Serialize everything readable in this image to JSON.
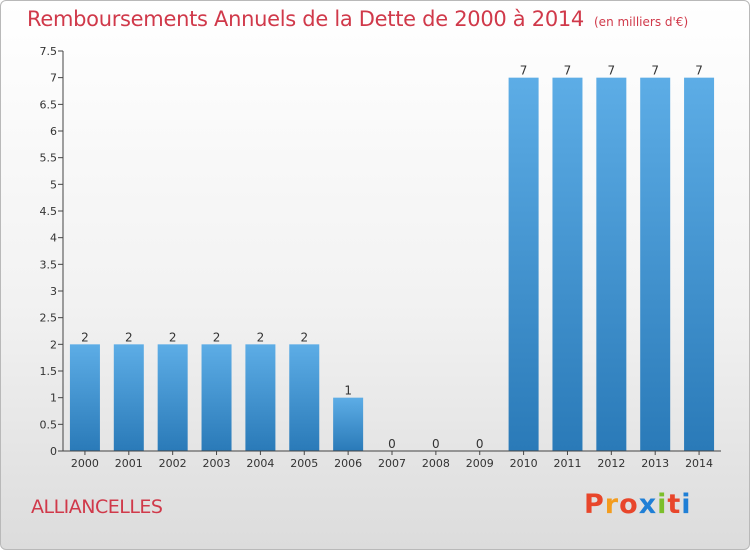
{
  "title": {
    "main": "Remboursements Annuels de la Dette de 2000 à 2014",
    "unit": "(en milliers d'€)"
  },
  "commune": "ALLIANCELLES",
  "logo": {
    "text": "Proxiti",
    "colors": [
      "#e8462b",
      "#f39c1e",
      "#e8462b",
      "#1f7fd6",
      "#7cbf2b",
      "#e8462b",
      "#1f7fd6"
    ]
  },
  "colors": {
    "bar_light": "#5dade6",
    "bar_dark": "#2a7ab8",
    "title": "#d0394a"
  },
  "chart_data": {
    "type": "bar",
    "categories": [
      "2000",
      "2001",
      "2002",
      "2003",
      "2004",
      "2005",
      "2006",
      "2007",
      "2008",
      "2009",
      "2010",
      "2011",
      "2012",
      "2013",
      "2014"
    ],
    "values": [
      2,
      2,
      2,
      2,
      2,
      2,
      1,
      0,
      0,
      0,
      7,
      7,
      7,
      7,
      7
    ],
    "data_labels": [
      "2",
      "2",
      "2",
      "2",
      "2",
      "2",
      "1",
      "0",
      "0",
      "0",
      "7",
      "7",
      "7",
      "7",
      "7"
    ],
    "ylim": [
      0,
      7.5
    ],
    "yticks": [
      0,
      0.5,
      1,
      1.5,
      2,
      2.5,
      3,
      3.5,
      4,
      4.5,
      5,
      5.5,
      6,
      6.5,
      7,
      7.5
    ],
    "ytick_labels": [
      "0",
      "0.5",
      "1",
      "1.5",
      "2",
      "2.5",
      "3",
      "3.5",
      "4",
      "4.5",
      "5",
      "5.5",
      "6",
      "6.5",
      "7",
      "7.5"
    ],
    "title": "Remboursements Annuels de la Dette de 2000 à 2014",
    "xlabel": "",
    "ylabel": "",
    "grid": false,
    "legend": "none"
  }
}
